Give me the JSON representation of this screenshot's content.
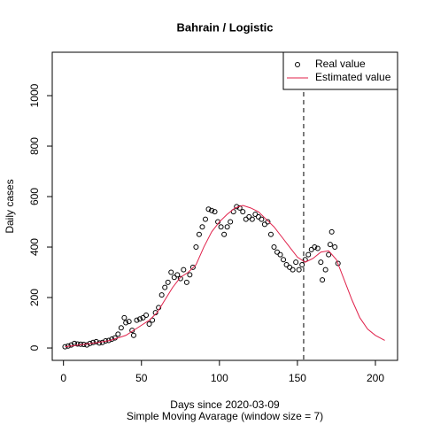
{
  "chart_data": {
    "type": "line",
    "title": "Bahrain / Logistic",
    "xlabel": "Days since 2020-03-09",
    "subtitle": "Simple Moving Avarage (window size = 7)",
    "ylabel": "Daily cases",
    "xlim": [
      -7.2,
      214.2
    ],
    "ylim": [
      -49,
      1172
    ],
    "xticks": [
      0,
      50,
      100,
      150,
      200
    ],
    "yticks": [
      0,
      200,
      400,
      600,
      800,
      1000
    ],
    "vline": 154,
    "legend": "topright",
    "series": [
      {
        "name": "Real value",
        "style": "points",
        "color": "#000000",
        "x": [
          1,
          3,
          5,
          7,
          9,
          11,
          13,
          15,
          17,
          19,
          21,
          23,
          25,
          27,
          29,
          31,
          33,
          35,
          37,
          39,
          40,
          42,
          44,
          45,
          47,
          49,
          51,
          53,
          55,
          57,
          59,
          61,
          63,
          65,
          67,
          69,
          71,
          73,
          75,
          77,
          79,
          81,
          83,
          85,
          87,
          89,
          91,
          93,
          95,
          97,
          99,
          101,
          103,
          105,
          107,
          109,
          111,
          113,
          115,
          117,
          119,
          121,
          123,
          125,
          127,
          129,
          131,
          133,
          135,
          137,
          139,
          141,
          143,
          145,
          147,
          149,
          151,
          153,
          155,
          157,
          159,
          161,
          163,
          165,
          166,
          168,
          170,
          171,
          172,
          174,
          176
        ],
        "values": [
          5,
          8,
          12,
          18,
          16,
          15,
          14,
          12,
          18,
          22,
          25,
          20,
          22,
          28,
          30,
          35,
          40,
          55,
          80,
          120,
          100,
          105,
          70,
          50,
          110,
          115,
          120,
          130,
          95,
          110,
          140,
          160,
          210,
          240,
          260,
          300,
          280,
          290,
          275,
          310,
          260,
          290,
          320,
          400,
          450,
          480,
          510,
          550,
          545,
          540,
          500,
          480,
          450,
          480,
          500,
          540,
          560,
          555,
          540,
          510,
          520,
          510,
          530,
          520,
          510,
          490,
          500,
          450,
          400,
          380,
          370,
          350,
          330,
          320,
          310,
          340,
          310,
          330,
          350,
          370,
          390,
          400,
          395,
          340,
          270,
          310,
          370,
          410,
          460,
          400,
          335
        ]
      },
      {
        "name": "Estimated value",
        "style": "line",
        "color": "#e0204a",
        "x": [
          1,
          10,
          20,
          30,
          40,
          50,
          55,
          60,
          65,
          70,
          75,
          80,
          85,
          90,
          95,
          100,
          105,
          110,
          115,
          120,
          125,
          130,
          135,
          140,
          145,
          150,
          155,
          160,
          165,
          170,
          175,
          180,
          185,
          190,
          195,
          200,
          206
        ],
        "values": [
          5,
          12,
          20,
          30,
          50,
          90,
          110,
          140,
          190,
          240,
          280,
          300,
          330,
          400,
          460,
          500,
          530,
          555,
          565,
          555,
          540,
          510,
          480,
          440,
          400,
          360,
          340,
          355,
          380,
          385,
          350,
          270,
          190,
          120,
          75,
          50,
          30
        ]
      }
    ]
  }
}
